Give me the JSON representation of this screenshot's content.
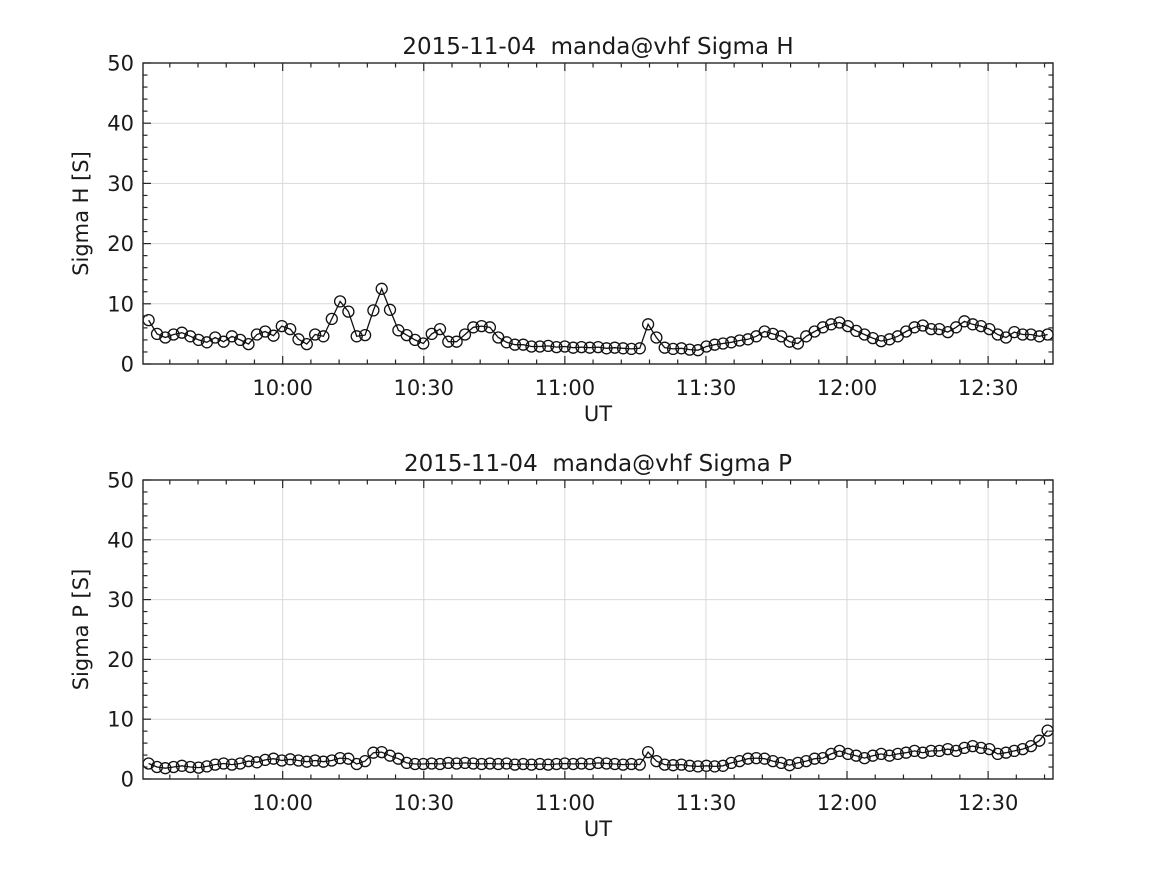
{
  "figure": {
    "background": "#ffffff",
    "text_color": "#1a1a1a",
    "axis_color": "#262626",
    "grid_color": "#d9d9d9",
    "series_color": "#111111"
  },
  "chart_data": [
    {
      "type": "line",
      "title": "2015-11-04  manda@vhf Sigma H",
      "xlabel": "UT",
      "ylabel": "Sigma H [S]",
      "ylim": [
        0,
        50
      ],
      "yticks": [
        0,
        10,
        20,
        30,
        40,
        50
      ],
      "y_minor_step": 2,
      "xlim_minutes": [
        570.3,
        763.8
      ],
      "xticks": [
        {
          "minutes": 600,
          "label": "10:00"
        },
        {
          "minutes": 630,
          "label": "10:30"
        },
        {
          "minutes": 660,
          "label": "11:00"
        },
        {
          "minutes": 690,
          "label": "11:30"
        },
        {
          "minutes": 720,
          "label": "12:00"
        },
        {
          "minutes": 750,
          "label": "12:30"
        }
      ],
      "x_minor_step_min": 6,
      "grid": true,
      "marker": "open-circle",
      "series": [
        {
          "name": "Sigma H",
          "x_start_min": 571.5,
          "x_step_min": 1.77,
          "values": [
            7.3,
            5.0,
            4.4,
            4.9,
            5.2,
            4.6,
            4.0,
            3.6,
            4.4,
            3.7,
            4.6,
            4.0,
            3.3,
            4.9,
            5.4,
            4.7,
            6.3,
            5.8,
            4.1,
            3.3,
            4.9,
            4.6,
            7.5,
            10.4,
            8.7,
            4.6,
            4.8,
            8.9,
            12.5,
            9.0,
            5.6,
            4.8,
            4.0,
            3.4,
            5.0,
            5.8,
            3.7,
            3.7,
            4.9,
            6.1,
            6.3,
            6.1,
            4.4,
            3.6,
            3.2,
            3.2,
            2.9,
            2.9,
            3.0,
            2.8,
            2.9,
            2.7,
            2.8,
            2.7,
            2.8,
            2.6,
            2.7,
            2.6,
            2.5,
            2.6,
            6.6,
            4.4,
            2.7,
            2.5,
            2.6,
            2.4,
            2.3,
            2.9,
            3.2,
            3.4,
            3.6,
            3.9,
            4.1,
            4.6,
            5.4,
            5.0,
            4.6,
            3.7,
            3.4,
            4.6,
            5.4,
            6.1,
            6.6,
            6.9,
            6.3,
            5.5,
            4.9,
            4.3,
            3.8,
            4.1,
            4.6,
            5.4,
            6.1,
            6.4,
            5.8,
            5.8,
            5.3,
            6.1,
            7.1,
            6.6,
            6.3,
            5.8,
            4.9,
            4.4,
            5.3,
            4.9,
            4.9,
            4.6,
            4.9
          ]
        }
      ]
    },
    {
      "type": "line",
      "title": "2015-11-04  manda@vhf Sigma P",
      "xlabel": "UT",
      "ylabel": "Sigma P [S]",
      "ylim": [
        0,
        50
      ],
      "yticks": [
        0,
        10,
        20,
        30,
        40,
        50
      ],
      "y_minor_step": 2,
      "xlim_minutes": [
        570.3,
        763.8
      ],
      "xticks": [
        {
          "minutes": 600,
          "label": "10:00"
        },
        {
          "minutes": 630,
          "label": "10:30"
        },
        {
          "minutes": 660,
          "label": "11:00"
        },
        {
          "minutes": 690,
          "label": "11:30"
        },
        {
          "minutes": 720,
          "label": "12:00"
        },
        {
          "minutes": 750,
          "label": "12:30"
        }
      ],
      "x_minor_step_min": 6,
      "grid": true,
      "marker": "open-circle",
      "series": [
        {
          "name": "Sigma P",
          "x_start_min": 571.5,
          "x_step_min": 1.77,
          "values": [
            2.6,
            2.0,
            1.8,
            2.0,
            2.2,
            2.0,
            1.9,
            2.1,
            2.4,
            2.6,
            2.4,
            2.6,
            3.0,
            2.8,
            3.2,
            3.4,
            3.1,
            3.3,
            3.1,
            2.9,
            3.1,
            2.9,
            3.1,
            3.5,
            3.4,
            2.5,
            3.0,
            4.4,
            4.5,
            3.9,
            3.4,
            2.7,
            2.5,
            2.5,
            2.6,
            2.5,
            2.7,
            2.6,
            2.7,
            2.6,
            2.5,
            2.6,
            2.5,
            2.6,
            2.4,
            2.5,
            2.4,
            2.5,
            2.4,
            2.5,
            2.6,
            2.5,
            2.6,
            2.5,
            2.7,
            2.6,
            2.5,
            2.4,
            2.5,
            2.4,
            4.5,
            3.0,
            2.4,
            2.3,
            2.4,
            2.2,
            2.1,
            2.2,
            2.1,
            2.2,
            2.7,
            3.0,
            3.4,
            3.5,
            3.4,
            3.0,
            2.7,
            2.3,
            2.7,
            3.0,
            3.4,
            3.5,
            4.2,
            4.7,
            4.2,
            3.9,
            3.5,
            3.9,
            4.2,
            3.9,
            4.2,
            4.4,
            4.7,
            4.4,
            4.7,
            4.7,
            5.0,
            4.7,
            5.2,
            5.5,
            5.2,
            5.0,
            4.2,
            4.4,
            4.7,
            5.0,
            5.5,
            6.4,
            8.1
          ]
        }
      ]
    }
  ]
}
